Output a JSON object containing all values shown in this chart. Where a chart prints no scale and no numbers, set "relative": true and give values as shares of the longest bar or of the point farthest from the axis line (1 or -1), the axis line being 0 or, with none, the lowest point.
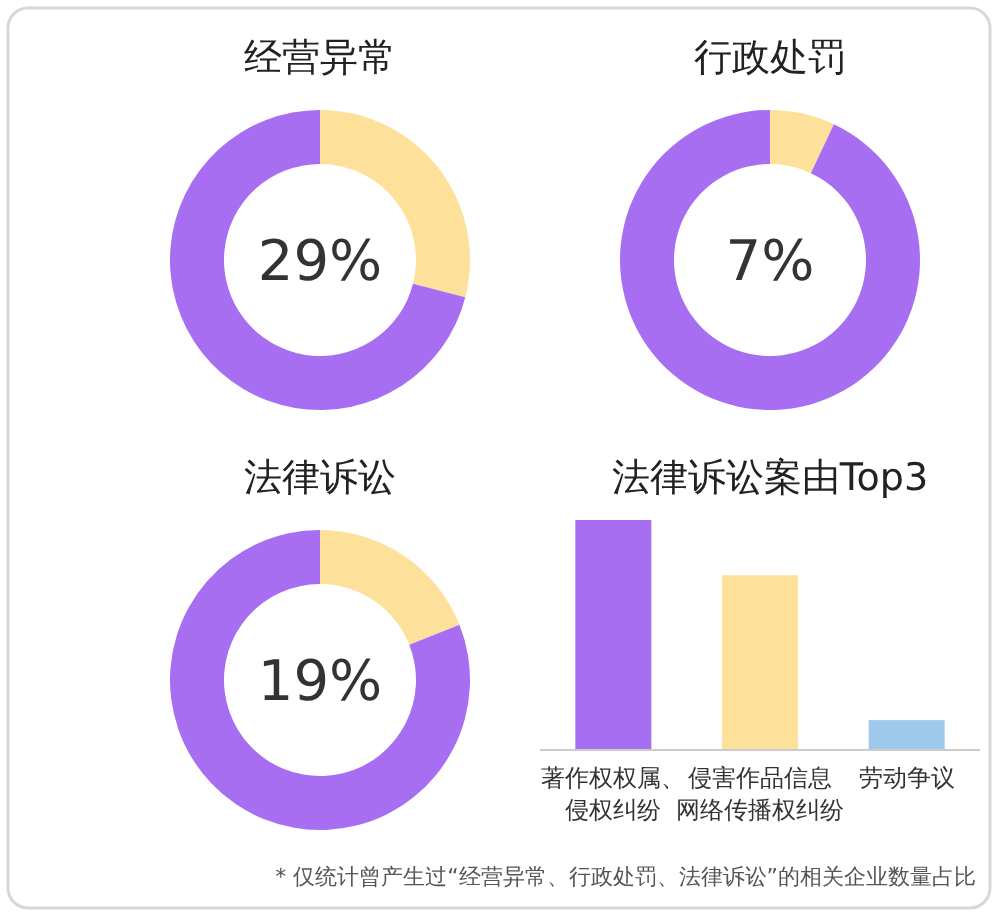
{
  "chart_data": [
    {
      "type": "donut",
      "title": "经营异常",
      "categories": [
        null,
        null
      ],
      "values": [
        29,
        71
      ],
      "colors": [
        "#fde19a",
        "#a86ef2"
      ],
      "annotations": [
        "29%"
      ]
    },
    {
      "type": "donut",
      "title": "行政处罚",
      "categories": [
        null,
        null
      ],
      "values": [
        7,
        93
      ],
      "colors": [
        "#fde19a",
        "#a86ef2"
      ],
      "annotations": [
        "7%"
      ]
    },
    {
      "type": "donut",
      "title": "法律诉讼",
      "categories": [
        null,
        null
      ],
      "values": [
        19,
        81
      ],
      "colors": [
        "#fde19a",
        "#a86ef2"
      ],
      "annotations": [
        "19%"
      ]
    },
    {
      "type": "bar",
      "title": "法律诉讼案由Top3",
      "relative": true,
      "categories": [
        "著作权权属、侵权纠纷",
        "侵害作品信息网络传播权纠纷",
        "劳动争议"
      ],
      "values": [
        1,
        0.76,
        0.13
      ],
      "colors": [
        "#a86ef2",
        "#fde19a",
        "#9fc9ec"
      ],
      "annotations": [
        "* 仅统计曾产生过“经营异常、行政处罚、法律诉讼”的相关企业数量占比"
      ]
    }
  ]
}
